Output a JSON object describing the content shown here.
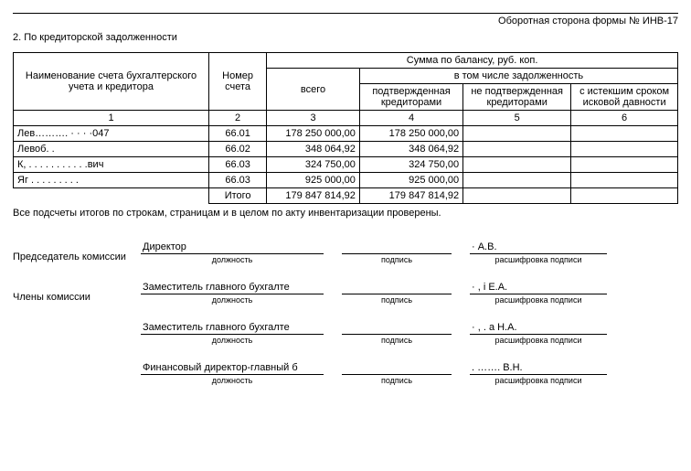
{
  "header": {
    "form_title": "Оборотная сторона формы № ИНВ-17",
    "section_number": "2.  По кредиторской задолженности"
  },
  "table": {
    "headers": {
      "name": "Наименование счета бухгалтерского учета и кредитора",
      "account": "Номер счета",
      "balance_group": "Сумма по балансу, руб. коп.",
      "total": "всего",
      "sub_group": "в том числе задолженность",
      "confirmed": "подтвержденная кредиторами",
      "not_confirmed": "не подтвержденная кредиторами",
      "expired": "с истекшим сроком исковой давности",
      "col_nums": [
        "1",
        "2",
        "3",
        "4",
        "5",
        "6"
      ]
    },
    "rows": [
      {
        "name": "Лев……….  · · · ·047",
        "acct": "66.01",
        "total": "178 250 000,00",
        "confirmed": "178 250 000,00",
        "not_confirmed": "",
        "expired": ""
      },
      {
        "name": "Левоб. .",
        "acct": "66.02",
        "total": "348 064,92",
        "confirmed": "348 064,92",
        "not_confirmed": "",
        "expired": ""
      },
      {
        "name": "К, . . . . . . . . . . .вич",
        "acct": "66.03",
        "total": "324 750,00",
        "confirmed": "324 750,00",
        "not_confirmed": "",
        "expired": ""
      },
      {
        "name": "Яг . . . . . . . . .",
        "acct": "66.03",
        "total": "925 000,00",
        "confirmed": "925 000,00",
        "not_confirmed": "",
        "expired": ""
      }
    ],
    "totals": {
      "label": "Итого",
      "total": "179 847 814,92",
      "confirmed": "179 847 814,92",
      "not_confirmed": "",
      "expired": ""
    }
  },
  "note_text": "Все подсчеты итогов по строкам, страницам и в целом по акту инвентаризации проверены.",
  "signatures": {
    "chairman_label": "Председатель комиссии",
    "members_label": "Члены комиссии",
    "captions": {
      "position": "должность",
      "signature": "подпись",
      "decoding": "расшифровка подписи"
    },
    "chairman": {
      "position": "Директор",
      "name": "·         А.В."
    },
    "members": [
      {
        "position": "Заместитель главного бухгалте",
        "name": "· ,      і Е.А."
      },
      {
        "position": "Заместитель главного бухгалте",
        "name": "· ,  .    а Н.А."
      },
      {
        "position": "Финансовый директор-главный б",
        "name": ". ……. В.Н."
      }
    ]
  }
}
